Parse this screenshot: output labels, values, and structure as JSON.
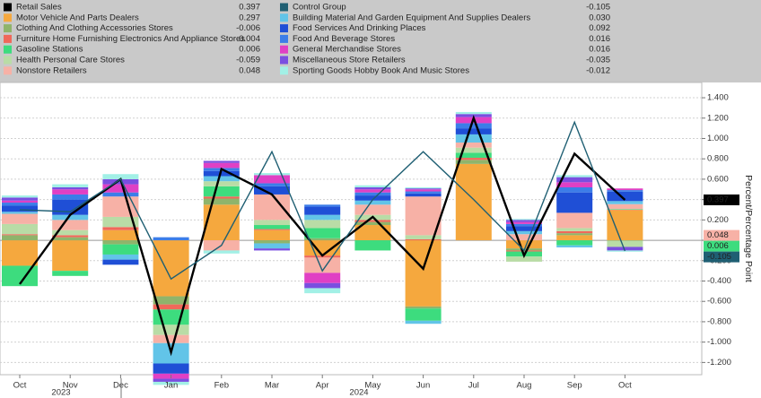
{
  "chart_data": {
    "type": "bar",
    "y_axis_label": "Percent/Percentage Point",
    "categories": [
      "Oct",
      "Nov",
      "Dec",
      "Jan",
      "Feb",
      "Mar",
      "Apr",
      "May",
      "Jun",
      "Jul",
      "Aug",
      "Sep",
      "Oct"
    ],
    "years": [
      "2023",
      "2024"
    ],
    "ylim": [
      -1.32,
      1.55
    ],
    "yticks": [
      {
        "value": -1.2,
        "label": "-1.200"
      },
      {
        "value": -1.0,
        "label": "-1.000"
      },
      {
        "value": -0.8,
        "label": "-0.800"
      },
      {
        "value": -0.6,
        "label": "-0.600"
      },
      {
        "value": -0.4,
        "label": "-0.400"
      },
      {
        "value": -0.2,
        "label": "-0.200"
      },
      {
        "value": 0,
        "label": "0.000"
      },
      {
        "value": 0.2,
        "label": "0.200"
      },
      {
        "value": 0.4,
        "label": "0.400"
      },
      {
        "value": 0.6,
        "label": "0.600"
      },
      {
        "value": 0.8,
        "label": "0.800"
      },
      {
        "value": 1.0,
        "label": "1.000"
      },
      {
        "value": 1.2,
        "label": "1.200"
      },
      {
        "value": 1.4,
        "label": "1.400"
      }
    ],
    "grid": true,
    "series": [
      {
        "name": "Retail Sales",
        "kind": "line",
        "color": "#000000",
        "legend_value": "0.397",
        "flag": true,
        "values": [
          -0.43,
          0.25,
          0.6,
          -1.1,
          0.7,
          0.45,
          -0.15,
          0.23,
          -0.28,
          1.2,
          -0.15,
          0.85,
          0.397
        ]
      },
      {
        "name": "Motor Vehicle And Parts Dealers",
        "kind": "bar",
        "color": "#f5a83e",
        "legend_value": "0.297",
        "values": [
          -0.25,
          -0.3,
          0.1,
          -0.55,
          0.35,
          0.1,
          -0.15,
          0.15,
          -0.65,
          0.75,
          -0.08,
          0.05,
          0.297
        ]
      },
      {
        "name": "Clothing And Clothing Accessories Stores",
        "kind": "bar",
        "color": "#8fb46b",
        "legend_value": "-0.006",
        "values": [
          0.05,
          0.03,
          -0.04,
          -0.08,
          0.06,
          -0.03,
          0.02,
          0.03,
          -0.02,
          0.04,
          -0.02,
          0.02,
          -0.006
        ]
      },
      {
        "name": "Furniture Home Furnishing Electronics And Appliance Stores",
        "kind": "bar",
        "color": "#f0685a",
        "legend_value": "0.004",
        "values": [
          0.01,
          0.02,
          0.03,
          -0.05,
          0.02,
          0.01,
          -0.02,
          0.02,
          0.01,
          0.02,
          -0.01,
          0.02,
          0.004
        ]
      },
      {
        "name": "Gasoline Stations",
        "kind": "bar",
        "color": "#3ddc7e",
        "legend_value": "0.006",
        "flag": true,
        "values": [
          -0.2,
          -0.05,
          -0.1,
          -0.15,
          0.1,
          0.04,
          0.1,
          -0.1,
          -0.12,
          0.05,
          -0.05,
          -0.05,
          0.006
        ]
      },
      {
        "name": "Health Personal Care Stores",
        "kind": "bar",
        "color": "#b9dca6",
        "legend_value": "-0.059",
        "values": [
          0.1,
          0.05,
          0.1,
          -0.1,
          0.05,
          0.05,
          0.08,
          0.05,
          0.04,
          0.05,
          -0.05,
          0.03,
          -0.059
        ]
      },
      {
        "name": "Nonstore Retailers",
        "kind": "bar",
        "color": "#f7b1a6",
        "legend_value": "0.048",
        "flag": true,
        "values": [
          0.1,
          0.1,
          0.2,
          -0.08,
          -0.1,
          0.25,
          -0.15,
          0.1,
          0.38,
          0.05,
          0.06,
          0.15,
          0.048
        ]
      },
      {
        "name": "Control Group",
        "kind": "line",
        "color": "#1f5f73",
        "legend_value": "-0.105",
        "flag": true,
        "values": [
          0.3,
          0.28,
          0.6,
          -0.38,
          -0.05,
          0.87,
          -0.3,
          0.4,
          0.87,
          0.4,
          -0.1,
          1.16,
          -0.105
        ]
      },
      {
        "name": "Building Material And Garden Equipment And Supplies Dealers",
        "kind": "bar",
        "color": "#62c4e8",
        "legend_value": "0.030",
        "values": [
          0.02,
          0.05,
          -0.05,
          -0.2,
          0.05,
          -0.05,
          0.05,
          0.04,
          -0.03,
          0.08,
          0.03,
          -0.02,
          0.03
        ]
      },
      {
        "name": "Food Services And Drinking Places",
        "kind": "bar",
        "color": "#1f4fd6",
        "legend_value": "0.092",
        "values": [
          0.06,
          0.15,
          -0.05,
          -0.1,
          0.05,
          0.08,
          0.08,
          0.05,
          0.03,
          0.06,
          0.05,
          0.2,
          0.092
        ]
      },
      {
        "name": "Food And Beverage Stores",
        "kind": "bar",
        "color": "#3c7de8",
        "legend_value": "0.016",
        "values": [
          0.03,
          0.05,
          0.04,
          0.03,
          0.03,
          0.03,
          0.02,
          0.03,
          0.02,
          0.05,
          0.02,
          0.05,
          0.016
        ]
      },
      {
        "name": "General Merchandise Stores",
        "kind": "bar",
        "color": "#e040c4",
        "legend_value": "0.016",
        "values": [
          0.02,
          0.05,
          0.08,
          -0.05,
          0.05,
          0.08,
          -0.1,
          0.03,
          0.02,
          0.06,
          0.02,
          0.05,
          0.016
        ]
      },
      {
        "name": "Miscellaneous Store Retailers",
        "kind": "bar",
        "color": "#7a4fe0",
        "legend_value": "-0.035",
        "values": [
          0.03,
          0.02,
          0.05,
          -0.03,
          0.02,
          -0.02,
          -0.05,
          0.02,
          0.01,
          0.03,
          0.02,
          0.05,
          -0.035
        ]
      },
      {
        "name": "Sporting Goods Hobby Book And Music Stores",
        "kind": "bar",
        "color": "#a2f0e6",
        "legend_value": "-0.012",
        "values": [
          0.02,
          0.03,
          0.05,
          -0.03,
          -0.03,
          0.02,
          -0.05,
          0.02,
          0.01,
          0.02,
          0.01,
          0.02,
          -0.012
        ]
      }
    ]
  }
}
